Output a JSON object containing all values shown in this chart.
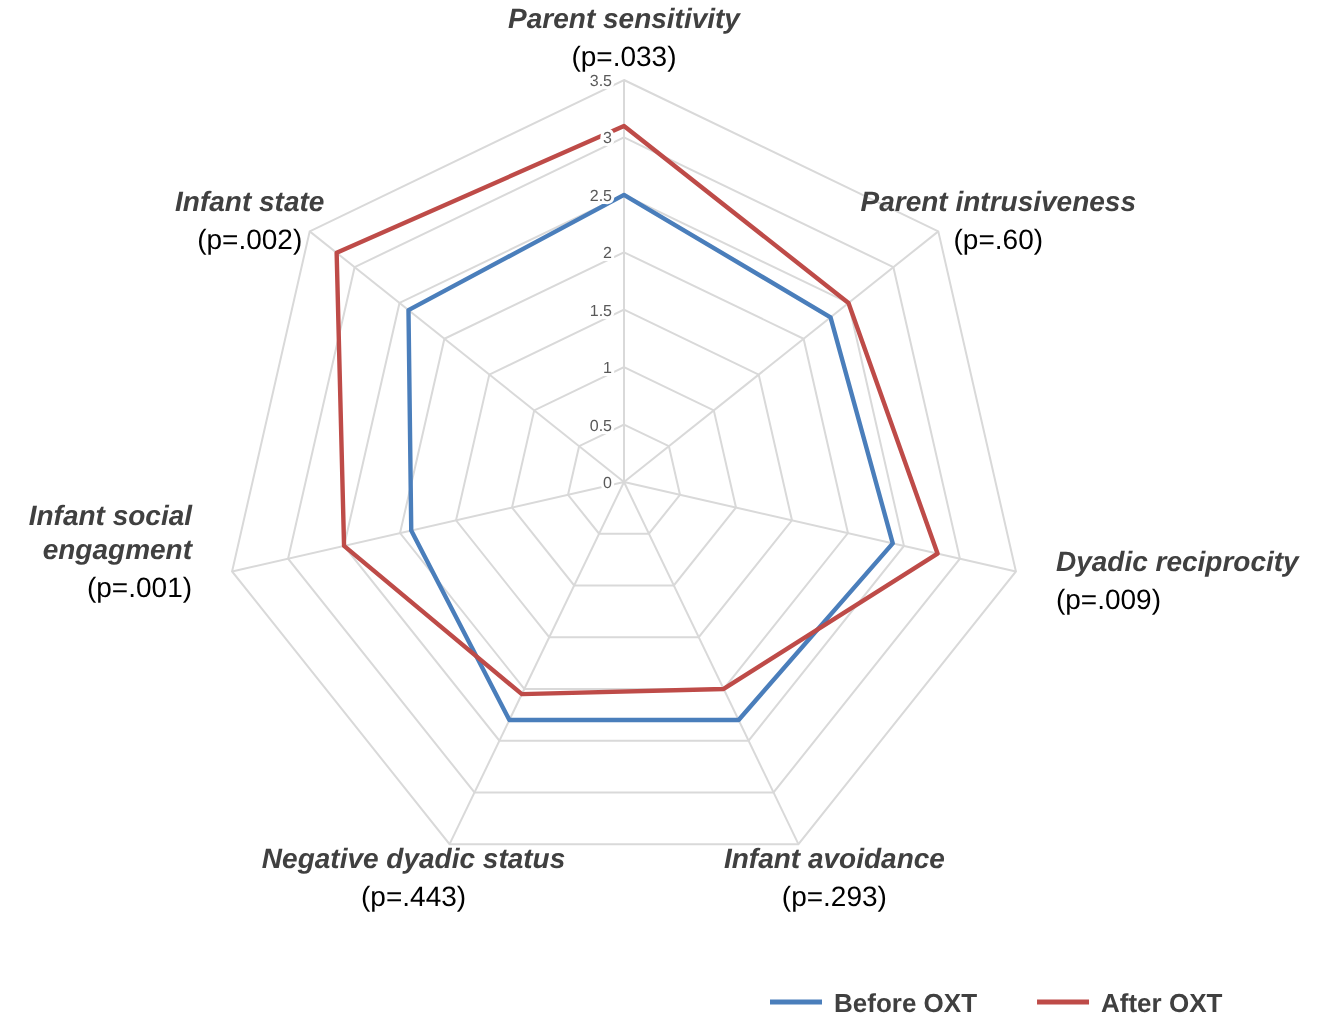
{
  "chart_data": {
    "type": "radar",
    "categories": [
      "Parent sensitivity",
      "Parent intrusiveness",
      "Dyadic reciprocity",
      "Infant avoidance",
      "Negative dyadic status",
      "Infant social engagment",
      "Infant state"
    ],
    "series": [
      {
        "name": "Before OXT",
        "color": "#4a7ebb",
        "values": [
          2.5,
          2.3,
          2.4,
          2.3,
          2.3,
          1.9,
          2.4
        ]
      },
      {
        "name": "After OXT",
        "color": "#be4b48",
        "values": [
          3.1,
          2.5,
          2.8,
          2.0,
          2.05,
          2.5,
          3.2
        ]
      }
    ],
    "ylim": [
      0,
      3.5
    ],
    "yticks": [
      0,
      0.5,
      1,
      1.5,
      2,
      2.5,
      3,
      3.5
    ],
    "grid": true,
    "legend": "bottom right",
    "marker": "none",
    "annotations": [
      "(p=.033)",
      "(p=.60)",
      "(p=.009)",
      "(p=.293)",
      "(p=.443)",
      "(p=.001)",
      "(p=.002)"
    ]
  }
}
